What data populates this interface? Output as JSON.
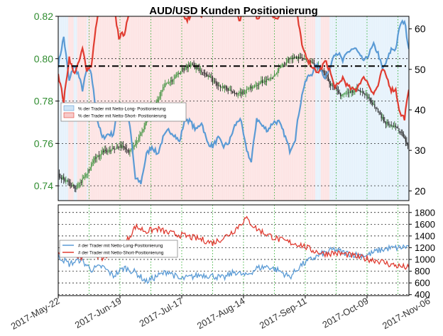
{
  "title": "AUD/USD Kunden Positionierung",
  "colors": {
    "long": "#5b9bd5",
    "short": "#e03c31",
    "long_fill": "#e6f2fb",
    "short_fill": "#fde4e4",
    "price_axis": "#2e8b2e",
    "candle_up": "#2e8b2e",
    "candle_down": "#111111",
    "grid": "#22aa22",
    "ref_line": "#000000"
  },
  "chart_data": [
    {
      "type": "line",
      "panel": "top",
      "title": "AUD/USD Kunden Positionierung",
      "left_axis": {
        "ticks": [
          "0.74",
          "0.76",
          "0.78",
          "0.80",
          "0.82"
        ],
        "ylim": [
          0.733,
          0.82
        ]
      },
      "right_axis": {
        "ticks": [
          "20",
          "30",
          "40",
          "50",
          "60"
        ],
        "ylim": [
          17.6,
          63.1
        ]
      },
      "reference_line": 50.8,
      "legend": {
        "placement": "left-middle",
        "entries": [
          "% der Trader mit Netto-Long- Positionierung",
          "% der Trader mit Netto-Short- Positionierung"
        ]
      },
      "series": [
        {
          "name": "% der Trader mit Netto-Long- Positionierung",
          "axis": "right",
          "anchors": [
            [
              0,
              51
            ],
            [
              5,
              58
            ],
            [
              10,
              47
            ],
            [
              14,
              51
            ],
            [
              18,
              49
            ],
            [
              22,
              45
            ],
            [
              26,
              50
            ],
            [
              30,
              49
            ],
            [
              35,
              38
            ],
            [
              40,
              33
            ],
            [
              45,
              34
            ],
            [
              50,
              34
            ],
            [
              55,
              42
            ],
            [
              60,
              41
            ],
            [
              65,
              36
            ],
            [
              70,
              23
            ],
            [
              75,
              22
            ],
            [
              80,
              29
            ],
            [
              85,
              31
            ],
            [
              90,
              29
            ],
            [
              95,
              33
            ],
            [
              100,
              35
            ],
            [
              105,
              34
            ],
            [
              110,
              32
            ],
            [
              115,
              38
            ],
            [
              120,
              37
            ],
            [
              125,
              35
            ],
            [
              130,
              37
            ],
            [
              135,
              32
            ],
            [
              140,
              31
            ],
            [
              145,
              33
            ],
            [
              150,
              31
            ],
            [
              155,
              32
            ],
            [
              160,
              36
            ],
            [
              165,
              38
            ],
            [
              170,
              31
            ],
            [
              175,
              27
            ],
            [
              180,
              38
            ],
            [
              185,
              36
            ],
            [
              190,
              35
            ],
            [
              195,
              37
            ],
            [
              200,
              37
            ],
            [
              205,
              34
            ],
            [
              210,
              30
            ],
            [
              215,
              33
            ],
            [
              218,
              39
            ],
            [
              222,
              45
            ],
            [
              226,
              48
            ],
            [
              230,
              49
            ],
            [
              234,
              51
            ],
            [
              238,
              50
            ],
            [
              242,
              48
            ],
            [
              246,
              50
            ],
            [
              250,
              54
            ],
            [
              254,
              54
            ],
            [
              258,
              52
            ],
            [
              262,
              54
            ],
            [
              266,
              55
            ],
            [
              270,
              55
            ],
            [
              274,
              53
            ],
            [
              278,
              52
            ],
            [
              282,
              54
            ],
            [
              286,
              56
            ],
            [
              290,
              54
            ],
            [
              294,
              50
            ],
            [
              298,
              52
            ],
            [
              302,
              55
            ],
            [
              306,
              55
            ],
            [
              310,
              61
            ],
            [
              314,
              62
            ],
            [
              318,
              55
            ]
          ]
        },
        {
          "name": "% der Trader mit Netto-Short- Positionierung",
          "axis": "right",
          "anchors": [
            [
              0,
              49
            ],
            [
              5,
              42
            ],
            [
              10,
              53
            ],
            [
              14,
              49
            ],
            [
              18,
              51
            ],
            [
              22,
              55
            ],
            [
              26,
              50
            ],
            [
              30,
              51
            ],
            [
              35,
              62
            ],
            [
              40,
              67
            ],
            [
              45,
              66
            ],
            [
              50,
              66
            ],
            [
              55,
              58
            ],
            [
              60,
              59
            ],
            [
              65,
              64
            ],
            [
              70,
              77
            ],
            [
              75,
              78
            ],
            [
              80,
              71
            ],
            [
              85,
              69
            ],
            [
              90,
              71
            ],
            [
              95,
              67
            ],
            [
              100,
              65
            ],
            [
              105,
              66
            ],
            [
              110,
              68
            ],
            [
              115,
              62
            ],
            [
              120,
              63
            ],
            [
              125,
              65
            ],
            [
              130,
              63
            ],
            [
              135,
              68
            ],
            [
              140,
              69
            ],
            [
              145,
              67
            ],
            [
              150,
              69
            ],
            [
              155,
              68
            ],
            [
              160,
              64
            ],
            [
              165,
              62
            ],
            [
              170,
              69
            ],
            [
              175,
              73
            ],
            [
              180,
              62
            ],
            [
              185,
              64
            ],
            [
              190,
              65
            ],
            [
              195,
              63
            ],
            [
              200,
              63
            ],
            [
              205,
              66
            ],
            [
              210,
              70
            ],
            [
              215,
              67
            ],
            [
              218,
              61
            ],
            [
              222,
              55
            ],
            [
              226,
              52
            ],
            [
              230,
              51
            ],
            [
              234,
              49
            ],
            [
              238,
              50
            ],
            [
              242,
              52
            ],
            [
              246,
              50
            ],
            [
              250,
              46
            ],
            [
              254,
              46
            ],
            [
              258,
              48
            ],
            [
              262,
              46
            ],
            [
              266,
              45
            ],
            [
              270,
              45
            ],
            [
              274,
              47
            ],
            [
              278,
              48
            ],
            [
              282,
              46
            ],
            [
              286,
              44
            ],
            [
              290,
              46
            ],
            [
              294,
              50
            ],
            [
              298,
              48
            ],
            [
              302,
              45
            ],
            [
              306,
              45
            ],
            [
              310,
              39
            ],
            [
              314,
              38
            ],
            [
              318,
              45
            ]
          ]
        },
        {
          "name": "",
          "type": "candlestick",
          "axis": "left",
          "anchors": [
            [
              0,
              0.745
            ],
            [
              8,
              0.742
            ],
            [
              16,
              0.739
            ],
            [
              24,
              0.744
            ],
            [
              32,
              0.752
            ],
            [
              40,
              0.756
            ],
            [
              48,
              0.757
            ],
            [
              56,
              0.759
            ],
            [
              64,
              0.756
            ],
            [
              72,
              0.762
            ],
            [
              80,
              0.77
            ],
            [
              88,
              0.778
            ],
            [
              96,
              0.787
            ],
            [
              104,
              0.79
            ],
            [
              112,
              0.795
            ],
            [
              120,
              0.797
            ],
            [
              128,
              0.795
            ],
            [
              136,
              0.792
            ],
            [
              144,
              0.788
            ],
            [
              152,
              0.786
            ],
            [
              160,
              0.784
            ],
            [
              168,
              0.784
            ],
            [
              176,
              0.787
            ],
            [
              184,
              0.789
            ],
            [
              192,
              0.79
            ],
            [
              200,
              0.795
            ],
            [
              208,
              0.799
            ],
            [
              216,
              0.801
            ],
            [
              224,
              0.8
            ],
            [
              232,
              0.797
            ],
            [
              240,
              0.795
            ],
            [
              248,
              0.787
            ],
            [
              256,
              0.783
            ],
            [
              264,
              0.784
            ],
            [
              272,
              0.786
            ],
            [
              280,
              0.782
            ],
            [
              288,
              0.777
            ],
            [
              296,
              0.77
            ],
            [
              304,
              0.768
            ],
            [
              312,
              0.765
            ],
            [
              316,
              0.76
            ],
            [
              318,
              0.758
            ]
          ]
        }
      ]
    },
    {
      "type": "line",
      "panel": "bottom",
      "right_axis": {
        "ticks": [
          "400",
          "600",
          "800",
          "1000",
          "1200",
          "1400",
          "1600",
          "1800"
        ],
        "ylim": [
          384,
          1930
        ]
      },
      "legend": {
        "placement": "left-middle",
        "entries": [
          "# der Trader mit Netto-Long-Positionierung",
          "# der Trader mit Netto-Short-Positionierung"
        ]
      },
      "series": [
        {
          "name": "# der Trader mit Netto-Long-Positionierung",
          "anchors": [
            [
              0,
              1060
            ],
            [
              10,
              920
            ],
            [
              20,
              1000
            ],
            [
              30,
              830
            ],
            [
              40,
              880
            ],
            [
              50,
              720
            ],
            [
              60,
              860
            ],
            [
              70,
              780
            ],
            [
              80,
              620
            ],
            [
              90,
              720
            ],
            [
              100,
              800
            ],
            [
              110,
              660
            ],
            [
              120,
              700
            ],
            [
              130,
              740
            ],
            [
              140,
              720
            ],
            [
              150,
              680
            ],
            [
              160,
              790
            ],
            [
              170,
              720
            ],
            [
              180,
              850
            ],
            [
              190,
              880
            ],
            [
              200,
              810
            ],
            [
              210,
              700
            ],
            [
              220,
              900
            ],
            [
              230,
              1010
            ],
            [
              240,
              1100
            ],
            [
              250,
              1170
            ],
            [
              260,
              1110
            ],
            [
              270,
              1080
            ],
            [
              280,
              1070
            ],
            [
              290,
              1150
            ],
            [
              300,
              1190
            ],
            [
              310,
              1200
            ],
            [
              318,
              1225
            ]
          ]
        },
        {
          "name": "# der Trader mit Netto-Short-Positionierung",
          "anchors": [
            [
              0,
              1110
            ],
            [
              10,
              1190
            ],
            [
              20,
              1040
            ],
            [
              30,
              1130
            ],
            [
              40,
              1020
            ],
            [
              50,
              1120
            ],
            [
              60,
              1250
            ],
            [
              70,
              1560
            ],
            [
              80,
              1480
            ],
            [
              90,
              1520
            ],
            [
              100,
              1450
            ],
            [
              110,
              1420
            ],
            [
              120,
              1380
            ],
            [
              130,
              1340
            ],
            [
              140,
              1280
            ],
            [
              150,
              1370
            ],
            [
              160,
              1500
            ],
            [
              170,
              1700
            ],
            [
              180,
              1520
            ],
            [
              190,
              1420
            ],
            [
              200,
              1340
            ],
            [
              210,
              1290
            ],
            [
              220,
              1250
            ],
            [
              230,
              1160
            ],
            [
              240,
              1100
            ],
            [
              250,
              1110
            ],
            [
              260,
              1090
            ],
            [
              270,
              1050
            ],
            [
              280,
              1010
            ],
            [
              290,
              980
            ],
            [
              300,
              920
            ],
            [
              310,
              880
            ],
            [
              318,
              860
            ]
          ]
        }
      ]
    }
  ],
  "x_axis": {
    "ticks": [
      "2017-May-22",
      "2017-Jun-19",
      "2017-Jul-17",
      "2017-Aug-14",
      "2017-Sep-11",
      "2017-Oct-09",
      "2017-Nov-06"
    ]
  }
}
